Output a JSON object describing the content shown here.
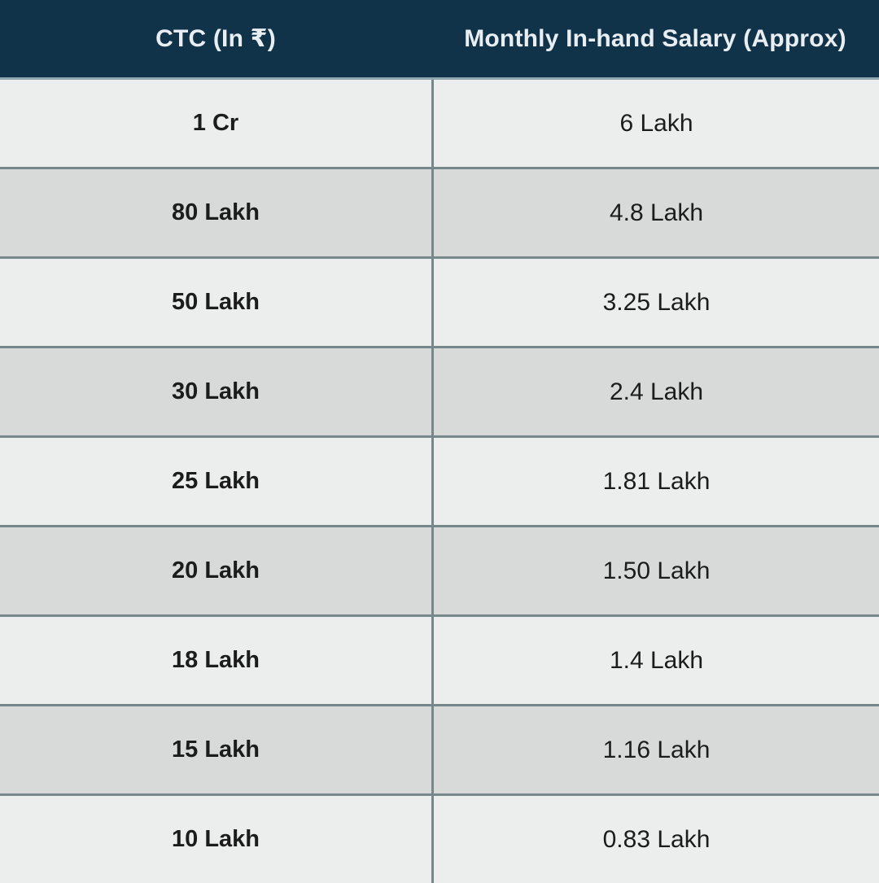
{
  "colors": {
    "header_bg": "#11334a",
    "header_text": "#e9eef2",
    "row_light": "#eceeed",
    "row_dark": "#d8dad9",
    "divider": "#76888c"
  },
  "table": {
    "columns": [
      {
        "label": "CTC (In ₹)"
      },
      {
        "label": "Monthly In-hand Salary (Approx)"
      }
    ],
    "rows": [
      {
        "ctc": "1 Cr",
        "inhand": "6 Lakh"
      },
      {
        "ctc": "80 Lakh",
        "inhand": "4.8 Lakh"
      },
      {
        "ctc": "50 Lakh",
        "inhand": "3.25 Lakh"
      },
      {
        "ctc": "30 Lakh",
        "inhand": "2.4 Lakh"
      },
      {
        "ctc": "25 Lakh",
        "inhand": "1.81 Lakh"
      },
      {
        "ctc": "20 Lakh",
        "inhand": "1.50 Lakh"
      },
      {
        "ctc": "18 Lakh",
        "inhand": "1.4 Lakh"
      },
      {
        "ctc": "15 Lakh",
        "inhand": "1.16 Lakh"
      },
      {
        "ctc": "10 Lakh",
        "inhand": "0.83 Lakh"
      }
    ]
  }
}
